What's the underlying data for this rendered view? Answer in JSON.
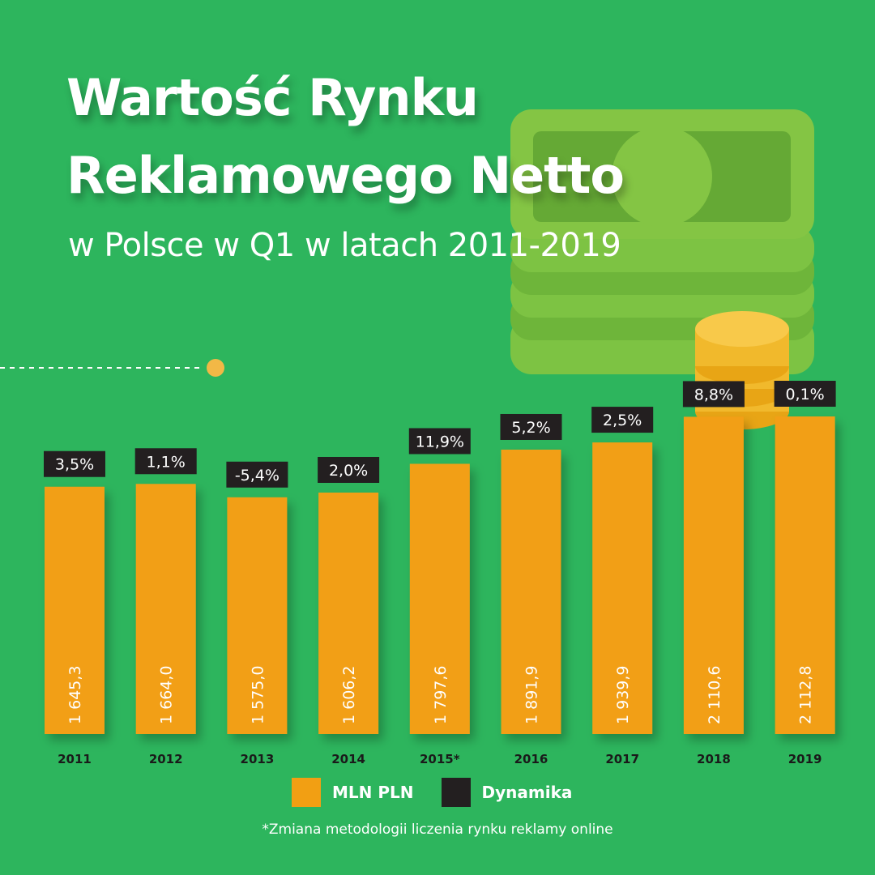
{
  "title_line1": "Wartość Rynku",
  "title_line2": "Reklamowego Netto",
  "subtitle": "w Polsce w Q1 w latach 2011-2019",
  "legend": [
    {
      "label": "MLN PLN",
      "color": "#f29f13"
    },
    {
      "label": "Dynamika",
      "color": "#231f20"
    }
  ],
  "footnote": "*Zmiana metodologii liczenia rynku reklamy online",
  "colors": {
    "background": "#2db55d",
    "bar": "#f29f13",
    "badge": "#231f20",
    "text": "#ffffff"
  },
  "decorations": [
    "money-stack-icon",
    "coin-stack-icon",
    "dashed-line-with-dot"
  ],
  "chart_data": {
    "type": "bar",
    "title": "Wartość Rynku Reklamowego Netto w Polsce w Q1 w latach 2011-2019",
    "xlabel": "",
    "ylabel": "",
    "ylim": [
      0,
      2112.8
    ],
    "categories": [
      "2011",
      "2012",
      "2013",
      "2014",
      "2015*",
      "2016",
      "2017",
      "2018",
      "2019"
    ],
    "series": [
      {
        "name": "MLN PLN",
        "values": [
          1645.3,
          1664.0,
          1575.0,
          1606.2,
          1797.6,
          1891.9,
          1939.9,
          2110.6,
          2112.8
        ],
        "labels": [
          "1 645,3",
          "1 664,0",
          "1 575,0",
          "1 606,2",
          "1 797,6",
          "1 891,9",
          "1 939,9",
          "2 110,6",
          "2 112,8"
        ]
      },
      {
        "name": "Dynamika",
        "labels": [
          "3,5%",
          "1,1%",
          "-5,4%",
          "2,0%",
          "11,9%",
          "5,2%",
          "2,5%",
          "8,8%",
          "0,1%"
        ]
      }
    ],
    "grid": false,
    "legend_position": "bottom"
  }
}
